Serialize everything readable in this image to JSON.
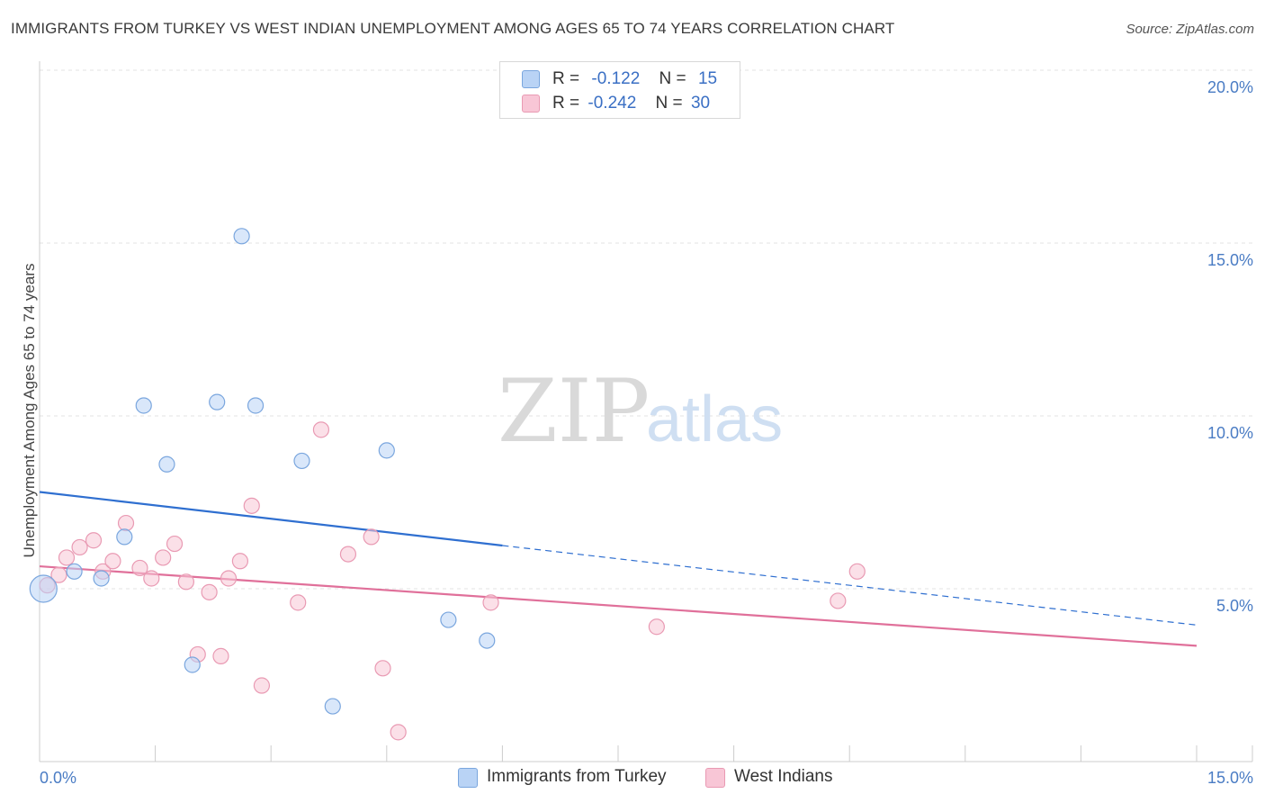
{
  "title": "IMMIGRANTS FROM TURKEY VS WEST INDIAN UNEMPLOYMENT AMONG AGES 65 TO 74 YEARS CORRELATION CHART",
  "source": "Source: ZipAtlas.com",
  "watermark": {
    "zip": "ZIP",
    "atlas": "atlas"
  },
  "legend": {
    "r_label": "R =",
    "n_label": "N =",
    "series": [
      {
        "r": "-0.122",
        "n": "15"
      },
      {
        "r": "-0.242",
        "n": "30"
      }
    ]
  },
  "colors": {
    "blue_fill": "#b9d3f5",
    "blue_stroke": "#7aa6de",
    "blue_line": "#2f6fd0",
    "pink_fill": "#f8c6d6",
    "pink_stroke": "#e99ab3",
    "pink_line": "#e0709a",
    "grid": "#e3e3e3",
    "axis": "#cccccc"
  },
  "chart_data": {
    "type": "scatter",
    "title": "IMMIGRANTS FROM TURKEY VS WEST INDIAN UNEMPLOYMENT AMONG AGES 65 TO 74 YEARS CORRELATION CHART",
    "xlabel": "",
    "ylabel": "Unemployment Among Ages 65 to 74 years",
    "xlim": [
      0,
      15
    ],
    "ylim": [
      0,
      20
    ],
    "x_tick_labels": [
      "0.0%",
      "15.0%"
    ],
    "y_ticks": [
      5,
      10,
      15,
      20
    ],
    "y_tick_labels": [
      "5.0%",
      "10.0%",
      "15.0%",
      "20.0%"
    ],
    "grid": true,
    "legend_position": "top-center",
    "series": [
      {
        "name": "Immigrants from Turkey",
        "color": "#b9d3f5",
        "points": [
          [
            0.05,
            5.0
          ],
          [
            0.45,
            5.5
          ],
          [
            0.8,
            5.3
          ],
          [
            1.1,
            6.5
          ],
          [
            1.35,
            10.3
          ],
          [
            1.65,
            8.6
          ],
          [
            1.98,
            2.8
          ],
          [
            2.3,
            10.4
          ],
          [
            2.62,
            15.2
          ],
          [
            2.8,
            10.3
          ],
          [
            3.4,
            8.7
          ],
          [
            3.8,
            1.6
          ],
          [
            4.5,
            9.0
          ],
          [
            5.3,
            4.1
          ],
          [
            5.8,
            3.5
          ]
        ],
        "trend": {
          "x0": 0,
          "y0": 7.8,
          "x1_solid": 6.0,
          "y1_solid": 6.25,
          "x1": 15,
          "y1": 3.95
        }
      },
      {
        "name": "West Indians",
        "color": "#f8c6d6",
        "points": [
          [
            0.1,
            5.1
          ],
          [
            0.25,
            5.4
          ],
          [
            0.35,
            5.9
          ],
          [
            0.52,
            6.2
          ],
          [
            0.7,
            6.4
          ],
          [
            0.82,
            5.5
          ],
          [
            0.95,
            5.8
          ],
          [
            1.12,
            6.9
          ],
          [
            1.3,
            5.6
          ],
          [
            1.45,
            5.3
          ],
          [
            1.6,
            5.9
          ],
          [
            1.75,
            6.3
          ],
          [
            1.9,
            5.2
          ],
          [
            2.05,
            3.1
          ],
          [
            2.2,
            4.9
          ],
          [
            2.35,
            3.05
          ],
          [
            2.45,
            5.3
          ],
          [
            2.6,
            5.8
          ],
          [
            2.75,
            7.4
          ],
          [
            2.88,
            2.2
          ],
          [
            3.35,
            4.6
          ],
          [
            3.65,
            9.6
          ],
          [
            4.0,
            6.0
          ],
          [
            4.3,
            6.5
          ],
          [
            4.45,
            2.7
          ],
          [
            4.65,
            0.85
          ],
          [
            5.85,
            4.6
          ],
          [
            8.0,
            3.9
          ],
          [
            10.35,
            4.65
          ],
          [
            10.6,
            5.5
          ]
        ],
        "trend": {
          "x0": 0,
          "y0": 5.65,
          "x1": 15,
          "y1": 3.35
        }
      }
    ]
  }
}
